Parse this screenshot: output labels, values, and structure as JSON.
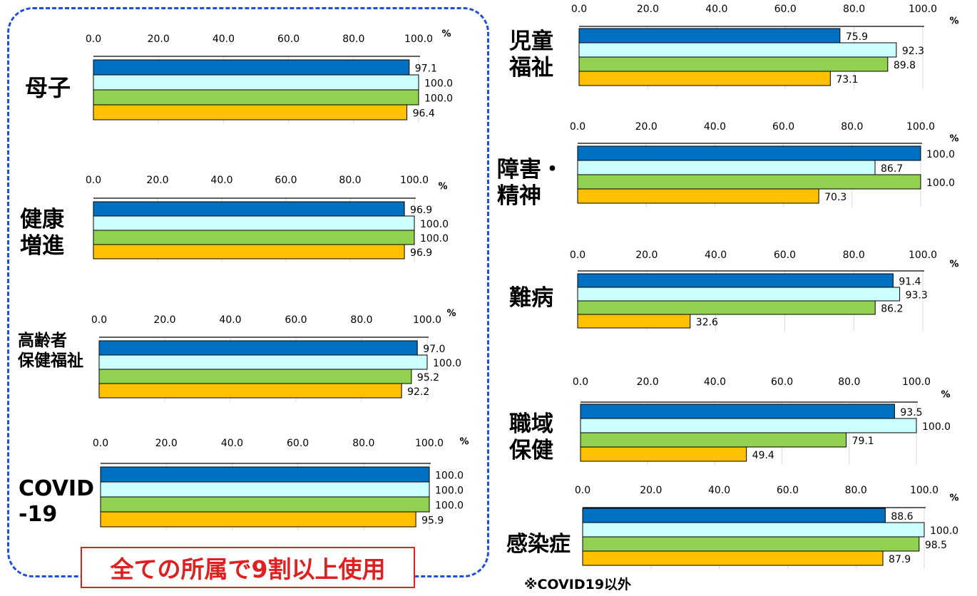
{
  "chart_data": [
    {
      "type": "bar",
      "label": "母子",
      "xlim": [
        0,
        100
      ],
      "ticks": [
        "0.0",
        "20.0",
        "40.0",
        "60.0",
        "80.0",
        "100.0"
      ],
      "unit": "%",
      "values": [
        97.1,
        100.0,
        100.0,
        96.4
      ]
    },
    {
      "type": "bar",
      "label": "健康\n増進",
      "xlim": [
        0,
        100
      ],
      "ticks": [
        "0.0",
        "20.0",
        "40.0",
        "60.0",
        "80.0",
        "100.0"
      ],
      "unit": "%",
      "values": [
        96.9,
        100.0,
        100.0,
        96.9
      ]
    },
    {
      "type": "bar",
      "label": "高齢者\n保健福祉",
      "xlim": [
        0,
        100
      ],
      "ticks": [
        "0.0",
        "20.0",
        "40.0",
        "60.0",
        "80.0",
        "100.0"
      ],
      "unit": "%",
      "values": [
        97.0,
        100.0,
        95.2,
        92.2
      ]
    },
    {
      "type": "bar",
      "label": "COVID\n-19",
      "xlim": [
        0,
        100
      ],
      "ticks": [
        "0.0",
        "20.0",
        "40.0",
        "60.0",
        "80.0",
        "100.0"
      ],
      "unit": "%",
      "values": [
        100.0,
        100.0,
        100.0,
        95.9
      ]
    },
    {
      "type": "bar",
      "label": "児童\n福祉",
      "xlim": [
        0,
        100
      ],
      "ticks": [
        "0.0",
        "20.0",
        "40.0",
        "60.0",
        "80.0",
        "100.0"
      ],
      "unit": "%",
      "values": [
        75.9,
        92.3,
        89.8,
        73.1
      ]
    },
    {
      "type": "bar",
      "label": "障害・\n精神",
      "xlim": [
        0,
        100
      ],
      "ticks": [
        "0.0",
        "20.0",
        "40.0",
        "60.0",
        "80.0",
        "100.0"
      ],
      "unit": "%",
      "values": [
        100.0,
        86.7,
        100.0,
        70.3
      ]
    },
    {
      "type": "bar",
      "label": "難病",
      "xlim": [
        0,
        100
      ],
      "ticks": [
        "0.0",
        "20.0",
        "40.0",
        "60.0",
        "80.0",
        "100.0"
      ],
      "unit": "%",
      "values": [
        91.4,
        93.3,
        86.2,
        32.6
      ]
    },
    {
      "type": "bar",
      "label": "職域\n保健",
      "xlim": [
        0,
        100
      ],
      "ticks": [
        "0.0",
        "20.0",
        "40.0",
        "60.0",
        "80.0",
        "100.0"
      ],
      "unit": "%",
      "values": [
        93.5,
        100.0,
        79.1,
        49.4
      ]
    },
    {
      "type": "bar",
      "label": "感染症",
      "xlim": [
        0,
        100
      ],
      "ticks": [
        "0.0",
        "20.0",
        "40.0",
        "60.0",
        "80.0",
        "100.0"
      ],
      "unit": "%",
      "values": [
        88.6,
        100.0,
        98.5,
        87.9
      ]
    }
  ],
  "series_colors": [
    "#0070c0",
    "#ccffff",
    "#92d050",
    "#ffc000"
  ],
  "frame_color": "#1f4fd6",
  "callout": {
    "text": "全ての所属で9割以上使用",
    "color": "#e02020"
  },
  "footnote": "※COVID19以外"
}
